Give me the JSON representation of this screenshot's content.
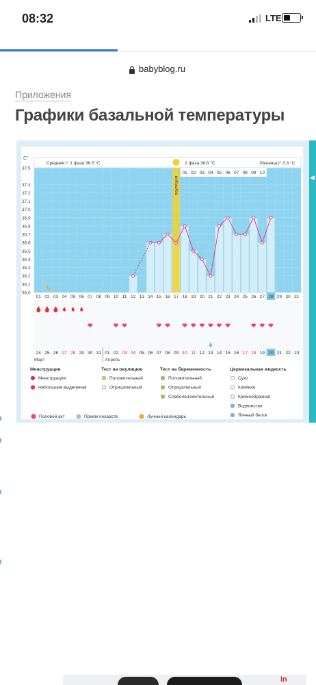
{
  "status": {
    "time": "08:32",
    "network": "LTE"
  },
  "browser": {
    "url": "babyblog.ru"
  },
  "page": {
    "breadcrumb": "Приложения",
    "title": "Графики базальной температуры"
  },
  "chart_data": {
    "type": "line",
    "y_unit": "C°",
    "y_ticks": [
      "37.5",
      "37.3",
      "37.2",
      "37.1",
      "37.0",
      "36.9",
      "36.8",
      "36.7",
      "36.6",
      "36.5",
      "36.4",
      "36.3",
      "36.2",
      "36.1",
      "36.0"
    ],
    "ylim": [
      36.0,
      37.5
    ],
    "ovulation_label": "овуляция",
    "phase1_label": "Средняя t° 1 фаза 36.5 °C",
    "phase2_label": "2 фаза 36.8 °C",
    "diff_label": "Разница t° 0.3 °C",
    "phase2_days": [
      "01",
      "02",
      "03",
      "04",
      "05",
      "06",
      "07",
      "08",
      "09",
      "10"
    ],
    "cycle_days": [
      "01",
      "02",
      "03",
      "04",
      "05",
      "06",
      "07",
      "08",
      "09",
      "10",
      "11",
      "12",
      "13",
      "14",
      "15",
      "16",
      "17",
      "18",
      "19",
      "20",
      "21",
      "22",
      "23",
      "24",
      "25",
      "26",
      "27",
      "28",
      "29",
      "30",
      "31"
    ],
    "cycle_highlight": "28",
    "temps": [
      null,
      null,
      null,
      null,
      null,
      null,
      null,
      null,
      null,
      null,
      null,
      36.2,
      null,
      36.6,
      36.6,
      36.7,
      36.6,
      36.8,
      36.5,
      36.4,
      36.2,
      36.8,
      36.9,
      36.7,
      36.7,
      36.9,
      36.6,
      36.9,
      null,
      null,
      null
    ],
    "dates": [
      "24",
      "25",
      "26",
      "27",
      "28",
      "29",
      "30",
      "31",
      "01",
      "02",
      "03",
      "04",
      "05",
      "06",
      "07",
      "08",
      "09",
      "10",
      "11",
      "12",
      "13",
      "14",
      "15",
      "16",
      "17",
      "18",
      "19",
      "20",
      "21",
      "22",
      "23"
    ],
    "date_red": [
      "27",
      "28",
      "03",
      "04",
      "10",
      "11",
      "17",
      "18"
    ],
    "date_highlight": "20",
    "month_march": "Март",
    "month_april": "Апрель",
    "menstruation_days": [
      1,
      2,
      3
    ],
    "spotting_days": [
      4,
      5,
      6
    ],
    "intercourse_days": [
      7,
      10,
      11,
      15,
      16,
      18,
      19,
      20,
      21,
      22,
      23,
      26,
      27,
      28
    ],
    "cervical_day": 21,
    "moon_day": 3
  },
  "legend": {
    "menstruation": {
      "title": "Менструация",
      "items": [
        "Менструация",
        "Небольшие выделения"
      ]
    },
    "ovulation_test": {
      "title": "Тест на овуляцию",
      "items": [
        "Положительный",
        "Отрицательный"
      ]
    },
    "pregnancy_test": {
      "title": "Тест на беременность",
      "items": [
        "Положительный",
        "Отрицательный",
        "Слабоположительный"
      ]
    },
    "cervical": {
      "title": "Цервикальная жидкость",
      "items": [
        "Сухо",
        "Клейкая",
        "Кремообразная",
        "Водянистая",
        "Яичный белок"
      ]
    },
    "bottom": [
      "Половой акт",
      "Прием лекарств",
      "Лунный календарь"
    ]
  },
  "colors": {
    "bar": "#d3edf9",
    "plot_bg": "#8ed3f0",
    "line": "#e8408a",
    "accent": "#f2d12e",
    "edge": "#2db8c5",
    "progress": "#2a78e4"
  }
}
